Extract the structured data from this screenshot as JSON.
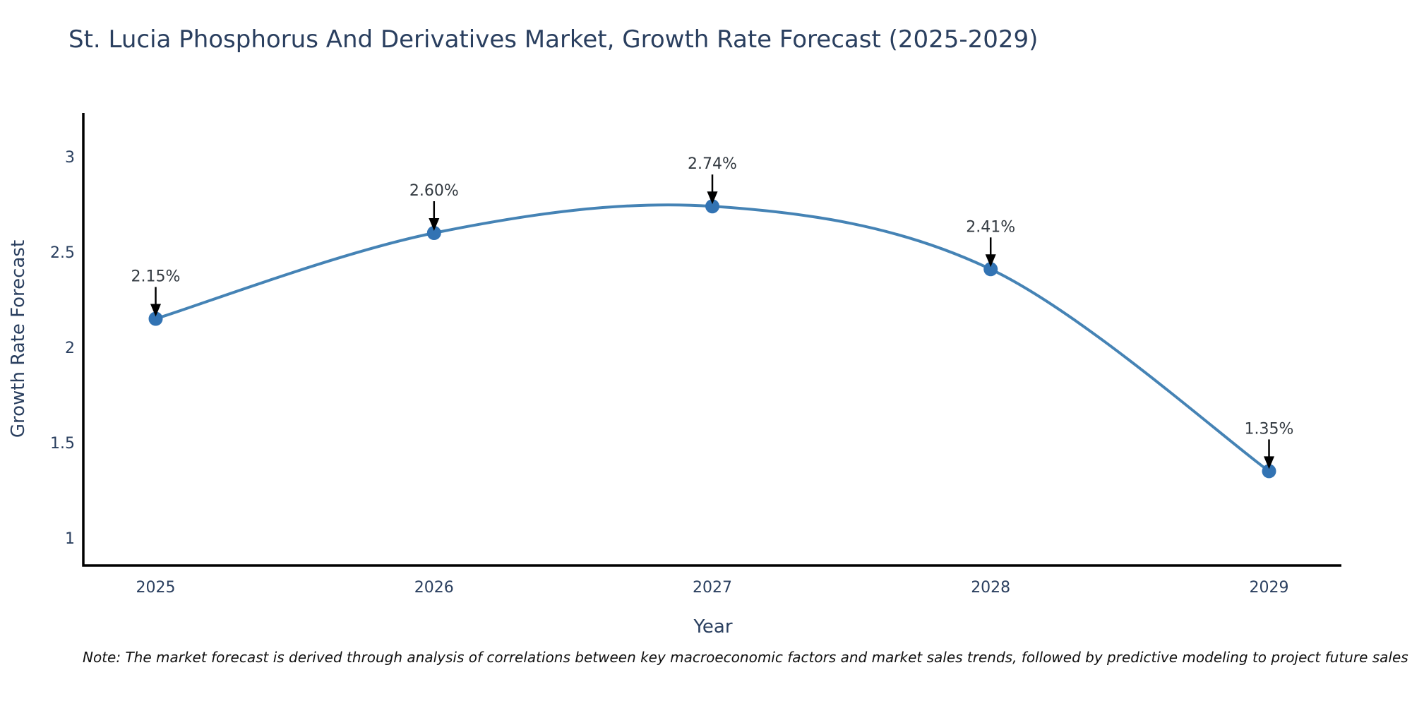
{
  "page_title": "St. Lucia Phosphorus And Derivatives Market, Growth Rate Forecast (2025-2029)",
  "note": "Note: The market forecast is derived through analysis of correlations between key macroeconomic factors and market sales trends, followed by predictive modeling to project future sales",
  "chart_data": {
    "type": "line",
    "title": "St. Lucia Phosphorus And Derivatives Market, Growth Rate Forecast (2025-2029)",
    "xlabel": "Year",
    "ylabel": "Growth Rate Forecast",
    "categories": [
      2025,
      2026,
      2027,
      2028,
      2029
    ],
    "values": [
      2.15,
      2.6,
      2.74,
      2.41,
      1.35
    ],
    "point_labels": [
      "2.15%",
      "2.60%",
      "2.74%",
      "2.41%",
      "1.35%"
    ],
    "yticks": [
      "1",
      "1.5",
      "2",
      "2.5",
      "3"
    ],
    "ylim": [
      0.855,
      3.23
    ],
    "xlim": [
      2024.74,
      2029.26
    ],
    "line_shape": "spline",
    "markers": true,
    "grid": false,
    "legend": false,
    "colors": {
      "line": "#4583b5",
      "marker": "#3273b3",
      "axis": "#000000",
      "text": "#2a3f5f",
      "annotation": "#333a41",
      "note": "#111111"
    }
  }
}
